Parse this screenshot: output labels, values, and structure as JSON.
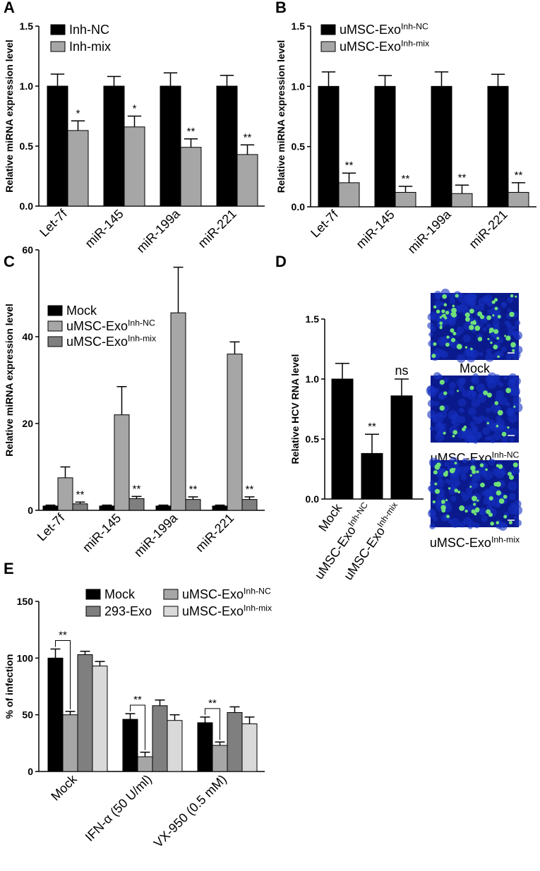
{
  "chart_data": [
    {
      "type": "bar",
      "panel": "A",
      "y_label": "Relative miRNA expression level",
      "categories": [
        "Let-7f",
        "miR-145",
        "miR-199a",
        "miR-221"
      ],
      "ylim": [
        0,
        1.5
      ],
      "yticks": [
        {
          "value": 0,
          "label": "0.0"
        },
        {
          "value": 0.5,
          "label": "0.5"
        },
        {
          "value": 1,
          "label": "1.0"
        },
        {
          "value": 1.5,
          "label": "1.5"
        }
      ],
      "series": [
        {
          "name": "Inh-NC",
          "color": "#000000",
          "values": [
            1,
            1,
            1,
            1
          ],
          "errors": [
            0.1,
            0.08,
            0.11,
            0.09
          ]
        },
        {
          "name": "Inh-mix",
          "color": "#a6a6a6",
          "values": [
            0.63,
            0.66,
            0.49,
            0.43
          ],
          "errors": [
            0.08,
            0.09,
            0.07,
            0.08
          ],
          "annotations": [
            "*",
            "*",
            "**",
            "**"
          ]
        }
      ]
    },
    {
      "type": "bar",
      "panel": "B",
      "y_label": "Relative miRNA expression level",
      "categories": [
        "Let-7f",
        "miR-145",
        "miR-199a",
        "miR-221"
      ],
      "ylim": [
        0,
        1.5
      ],
      "yticks": [
        {
          "value": 0,
          "label": "0.0"
        },
        {
          "value": 0.5,
          "label": "0.5"
        },
        {
          "value": 1,
          "label": "1.0"
        },
        {
          "value": 1.5,
          "label": "1.5"
        }
      ],
      "series": [
        {
          "name": "uMSC-Exo",
          "superscript": "Inh-NC",
          "color": "#000000",
          "values": [
            1,
            1,
            1,
            1
          ],
          "errors": [
            0.12,
            0.09,
            0.12,
            0.1
          ]
        },
        {
          "name": "uMSC-Exo",
          "superscript": "Inh-mix",
          "color": "#a6a6a6",
          "values": [
            0.2,
            0.12,
            0.11,
            0.12
          ],
          "errors": [
            0.08,
            0.05,
            0.07,
            0.08
          ],
          "annotations": [
            "**",
            "**",
            "**",
            "**"
          ]
        }
      ]
    },
    {
      "type": "bar",
      "panel": "C",
      "y_label": "Relative miRNA expression level",
      "categories": [
        "Let-7f",
        "miR-145",
        "miR-199a",
        "miR-221"
      ],
      "ylim": [
        0,
        60
      ],
      "yticks": [
        0,
        20,
        40,
        60
      ],
      "series": [
        {
          "name": "Mock",
          "color": "#000000",
          "values": [
            1,
            1,
            1,
            1
          ],
          "errors": [
            0.2,
            0.2,
            0.2,
            0.2
          ]
        },
        {
          "name": "uMSC-Exo",
          "superscript": "Inh-NC",
          "color": "#a6a6a6",
          "values": [
            7.5,
            22,
            45.5,
            36
          ],
          "errors": [
            2.5,
            6.5,
            10.5,
            2.8
          ]
        },
        {
          "name": "uMSC-Exo",
          "superscript": "Inh-mix",
          "color": "#7f7f7f",
          "values": [
            1.5,
            2.7,
            2.5,
            2.5
          ],
          "errors": [
            0.4,
            0.5,
            0.6,
            0.6
          ],
          "annotations": [
            "**",
            "**",
            "**",
            "**"
          ]
        }
      ]
    },
    {
      "type": "bar",
      "panel": "D",
      "y_label": "Relative HCV RNA level",
      "categories": [
        "Mock",
        "uMSC-Exo",
        "uMSC-Exo"
      ],
      "category_superscripts": [
        null,
        "Inh-NC",
        "Inh-mix"
      ],
      "ylim": [
        0,
        1.5
      ],
      "yticks": [
        {
          "value": 0,
          "label": "0.0"
        },
        {
          "value": 0.5,
          "label": "0.5"
        },
        {
          "value": 1,
          "label": "1.0"
        },
        {
          "value": 1.5,
          "label": "1.5"
        }
      ],
      "series": [
        {
          "color": "#000000",
          "values": [
            1,
            0.38,
            0.86
          ],
          "errors": [
            0.13,
            0.16,
            0.14
          ],
          "annotations": [
            null,
            "**",
            "ns"
          ]
        }
      ],
      "images": [
        {
          "caption": "Mock"
        },
        {
          "caption": "uMSC-Exo",
          "superscript": "Inh-NC"
        },
        {
          "caption": "uMSC-Exo",
          "superscript": "Inh-mix"
        }
      ]
    },
    {
      "type": "bar",
      "panel": "E",
      "y_label": "% of infection",
      "categories": [
        "Mock",
        "IFN-α (50 U/ml)",
        "VX-950 (0.5 mM)"
      ],
      "ylim": [
        0,
        150
      ],
      "yticks": [
        0,
        50,
        100,
        150
      ],
      "series": [
        {
          "name": "Mock",
          "color": "#000000",
          "values": [
            100,
            46,
            43
          ],
          "errors": [
            8,
            5,
            5
          ]
        },
        {
          "name": "uMSC-Exo",
          "superscript": "Inh-NC",
          "color": "#a6a6a6",
          "values": [
            50,
            13,
            23
          ],
          "errors": [
            3,
            4,
            3
          ]
        },
        {
          "name": "293-Exo",
          "color": "#7f7f7f",
          "values": [
            103,
            58,
            52
          ],
          "errors": [
            3,
            5,
            5
          ]
        },
        {
          "name": "uMSC-Exo",
          "superscript": "Inh-mix",
          "color": "#d9d9d9",
          "values": [
            93,
            45,
            42
          ],
          "errors": [
            4,
            5,
            6
          ]
        }
      ],
      "annotations": [
        "**",
        "**",
        "**"
      ]
    }
  ]
}
